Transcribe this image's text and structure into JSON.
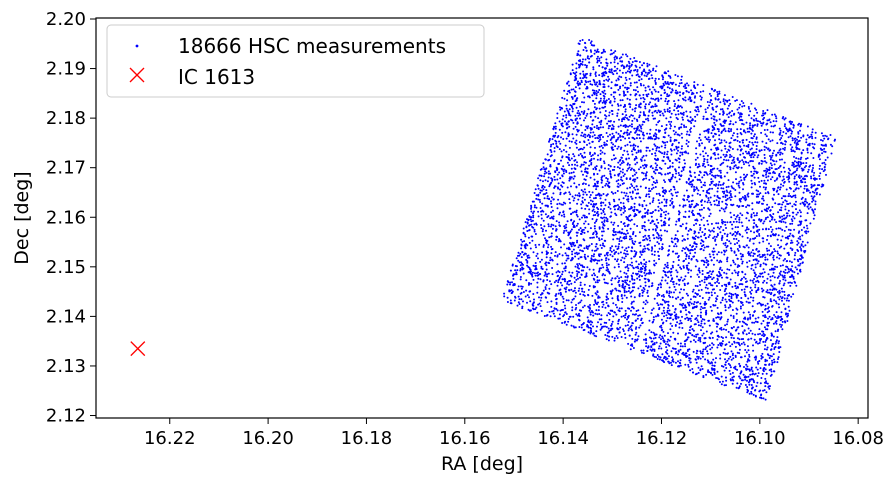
{
  "chart_data": {
    "type": "scatter",
    "title": "",
    "xlabel": "RA [deg]",
    "ylabel": "Dec [deg]",
    "xlim": [
      16.235,
      16.078
    ],
    "ylim": [
      2.1195,
      2.2002
    ],
    "x_inverted": true,
    "x_ticks": [
      "16.22",
      "16.20",
      "16.18",
      "16.16",
      "16.14",
      "16.12",
      "16.10",
      "16.08"
    ],
    "y_ticks": [
      "2.12",
      "2.13",
      "2.14",
      "2.15",
      "2.16",
      "2.17",
      "2.18",
      "2.19",
      "2.20"
    ],
    "grid": false,
    "legend_position": "top-left",
    "series": [
      {
        "name": "18666 HSC measurements",
        "marker": "point",
        "color": "#0000ff",
        "count": 18666,
        "region": {
          "corners": [
            {
              "x": 16.1525,
              "y": 2.1432
            },
            {
              "x": 16.1365,
              "y": 2.1965
            },
            {
              "x": 16.0845,
              "y": 2.1762
            },
            {
              "x": 16.0985,
              "y": 2.1228
            }
          ],
          "gap_line": [
            {
              "x": 16.1105,
              "y": 2.1858
            },
            {
              "x": 16.1245,
              "y": 2.134
            }
          ]
        }
      },
      {
        "name": "IC 1613",
        "marker": "x",
        "color": "#ff0000",
        "points": [
          {
            "x": 16.2265,
            "y": 2.1335
          }
        ]
      }
    ]
  }
}
